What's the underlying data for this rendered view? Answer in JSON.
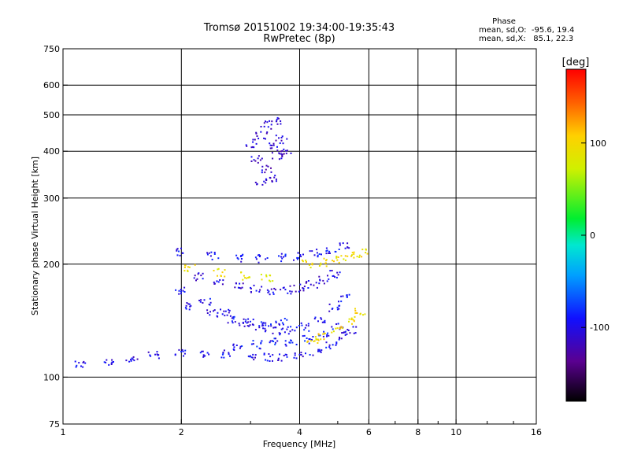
{
  "header": {
    "title_line1": "Tromsø 20151002 19:34:00-19:35:43",
    "title_line2": "RwPretec (8p)"
  },
  "phase_info": {
    "title": "Phase",
    "line1": "mean, sd,O:  -95.6, 19.4",
    "line2": "mean, sd,X:   85.1, 22.3"
  },
  "colorbar": {
    "unit_label": "[deg]",
    "min": -180,
    "max": 180,
    "ticks": [
      {
        "value": 100,
        "label": "100"
      },
      {
        "value": 0,
        "label": "0"
      },
      {
        "value": -100,
        "label": "-100"
      }
    ]
  },
  "chart_data": {
    "type": "scatter",
    "title": "Tromsø 20151002 19:34:00-19:35:43",
    "subtitle": "RwPretec (8p)",
    "xlabel": "Frequency [MHz]",
    "ylabel": "Stationary phase Virtual Height [km]",
    "x_scale": "log",
    "y_scale": "log",
    "xlim": [
      1,
      16
    ],
    "ylim": [
      75,
      750
    ],
    "x_ticks": [
      {
        "value": 1,
        "label": "1"
      },
      {
        "value": 2,
        "label": "2"
      },
      {
        "value": 4,
        "label": "4"
      },
      {
        "value": 6,
        "label": "6"
      },
      {
        "value": 8,
        "label": "8"
      },
      {
        "value": 10,
        "label": "10"
      },
      {
        "value": 16,
        "label": "16"
      }
    ],
    "x_gridlines": [
      2,
      4,
      6,
      8,
      10
    ],
    "x_minor_ticks": [
      3,
      5,
      7,
      9,
      12,
      14
    ],
    "y_ticks": [
      {
        "value": 75,
        "label": "75"
      },
      {
        "value": 100,
        "label": "100"
      },
      {
        "value": 200,
        "label": "200"
      },
      {
        "value": 300,
        "label": "300"
      },
      {
        "value": 400,
        "label": "400"
      },
      {
        "value": 500,
        "label": "500"
      },
      {
        "value": 600,
        "label": "600"
      },
      {
        "value": 750,
        "label": "750"
      }
    ],
    "y_gridlines": [
      100,
      200,
      300,
      400,
      500,
      600
    ],
    "color_scale": "phase in degrees, -180 (black) to 180 (red)",
    "traces": [
      {
        "mode": "O",
        "phase": -100,
        "points": [
          [
            1.1,
            108
          ],
          [
            1.3,
            110
          ],
          [
            1.5,
            112
          ],
          [
            1.7,
            114
          ],
          [
            2.0,
            116
          ],
          [
            2.3,
            116
          ],
          [
            2.6,
            115
          ],
          [
            3.0,
            114
          ],
          [
            3.3,
            113
          ],
          [
            3.6,
            113
          ],
          [
            4.0,
            114
          ],
          [
            4.4,
            117
          ],
          [
            4.8,
            122
          ],
          [
            5.2,
            129
          ],
          [
            5.4,
            134
          ]
        ]
      },
      {
        "mode": "O",
        "phase": -100,
        "points": [
          [
            2.0,
            170
          ],
          [
            2.3,
            158
          ],
          [
            2.6,
            148
          ],
          [
            2.9,
            140
          ],
          [
            3.2,
            135
          ],
          [
            3.5,
            133
          ],
          [
            3.8,
            133
          ],
          [
            4.1,
            136
          ],
          [
            4.5,
            143
          ],
          [
            4.9,
            153
          ],
          [
            5.2,
            163
          ]
        ]
      },
      {
        "mode": "O",
        "phase": -95,
        "points": [
          [
            2.1,
            155
          ],
          [
            2.4,
            148
          ],
          [
            2.7,
            143
          ],
          [
            3.0,
            140
          ],
          [
            3.3,
            139
          ],
          [
            3.6,
            140
          ]
        ]
      },
      {
        "mode": "O",
        "phase": -90,
        "points": [
          [
            2.8,
            120
          ],
          [
            3.1,
            122
          ],
          [
            3.4,
            124
          ],
          [
            3.8,
            124
          ],
          [
            4.2,
            126
          ],
          [
            4.6,
            130
          ],
          [
            5.0,
            136
          ]
        ]
      },
      {
        "mode": "O",
        "phase": -105,
        "points": [
          [
            2.2,
            185
          ],
          [
            2.5,
            178
          ],
          [
            2.8,
            174
          ],
          [
            3.1,
            172
          ],
          [
            3.4,
            170
          ],
          [
            3.7,
            171
          ],
          [
            4.0,
            173
          ],
          [
            4.3,
            177
          ],
          [
            4.6,
            182
          ],
          [
            4.9,
            188
          ]
        ]
      },
      {
        "mode": "O",
        "phase": -95,
        "points": [
          [
            2.0,
            215
          ],
          [
            2.4,
            211
          ],
          [
            2.8,
            208
          ],
          [
            3.2,
            207
          ],
          [
            3.6,
            208
          ],
          [
            4.0,
            210
          ],
          [
            4.4,
            214
          ],
          [
            4.8,
            218
          ],
          [
            5.2,
            223
          ]
        ]
      },
      {
        "mode": "O",
        "phase": -110,
        "points": [
          [
            3.0,
            420
          ],
          [
            3.1,
            380
          ],
          [
            3.2,
            440
          ],
          [
            3.3,
            360
          ],
          [
            3.4,
            410
          ],
          [
            3.5,
            390
          ],
          [
            3.6,
            430
          ],
          [
            3.7,
            400
          ],
          [
            3.3,
            470
          ],
          [
            3.5,
            480
          ],
          [
            3.2,
            330
          ],
          [
            3.4,
            340
          ]
        ]
      },
      {
        "mode": "X",
        "phase": 100,
        "points": [
          [
            4.3,
            125
          ],
          [
            4.6,
            128
          ],
          [
            5.0,
            134
          ],
          [
            5.4,
            142
          ],
          [
            5.7,
            150
          ]
        ]
      },
      {
        "mode": "X",
        "phase": 95,
        "points": [
          [
            4.2,
            200
          ],
          [
            4.6,
            202
          ],
          [
            5.0,
            206
          ],
          [
            5.4,
            210
          ],
          [
            5.8,
            214
          ]
        ]
      },
      {
        "mode": "X",
        "phase": 90,
        "points": [
          [
            2.1,
            195
          ],
          [
            2.5,
            190
          ],
          [
            2.9,
            186
          ],
          [
            3.3,
            184
          ]
        ]
      }
    ]
  }
}
